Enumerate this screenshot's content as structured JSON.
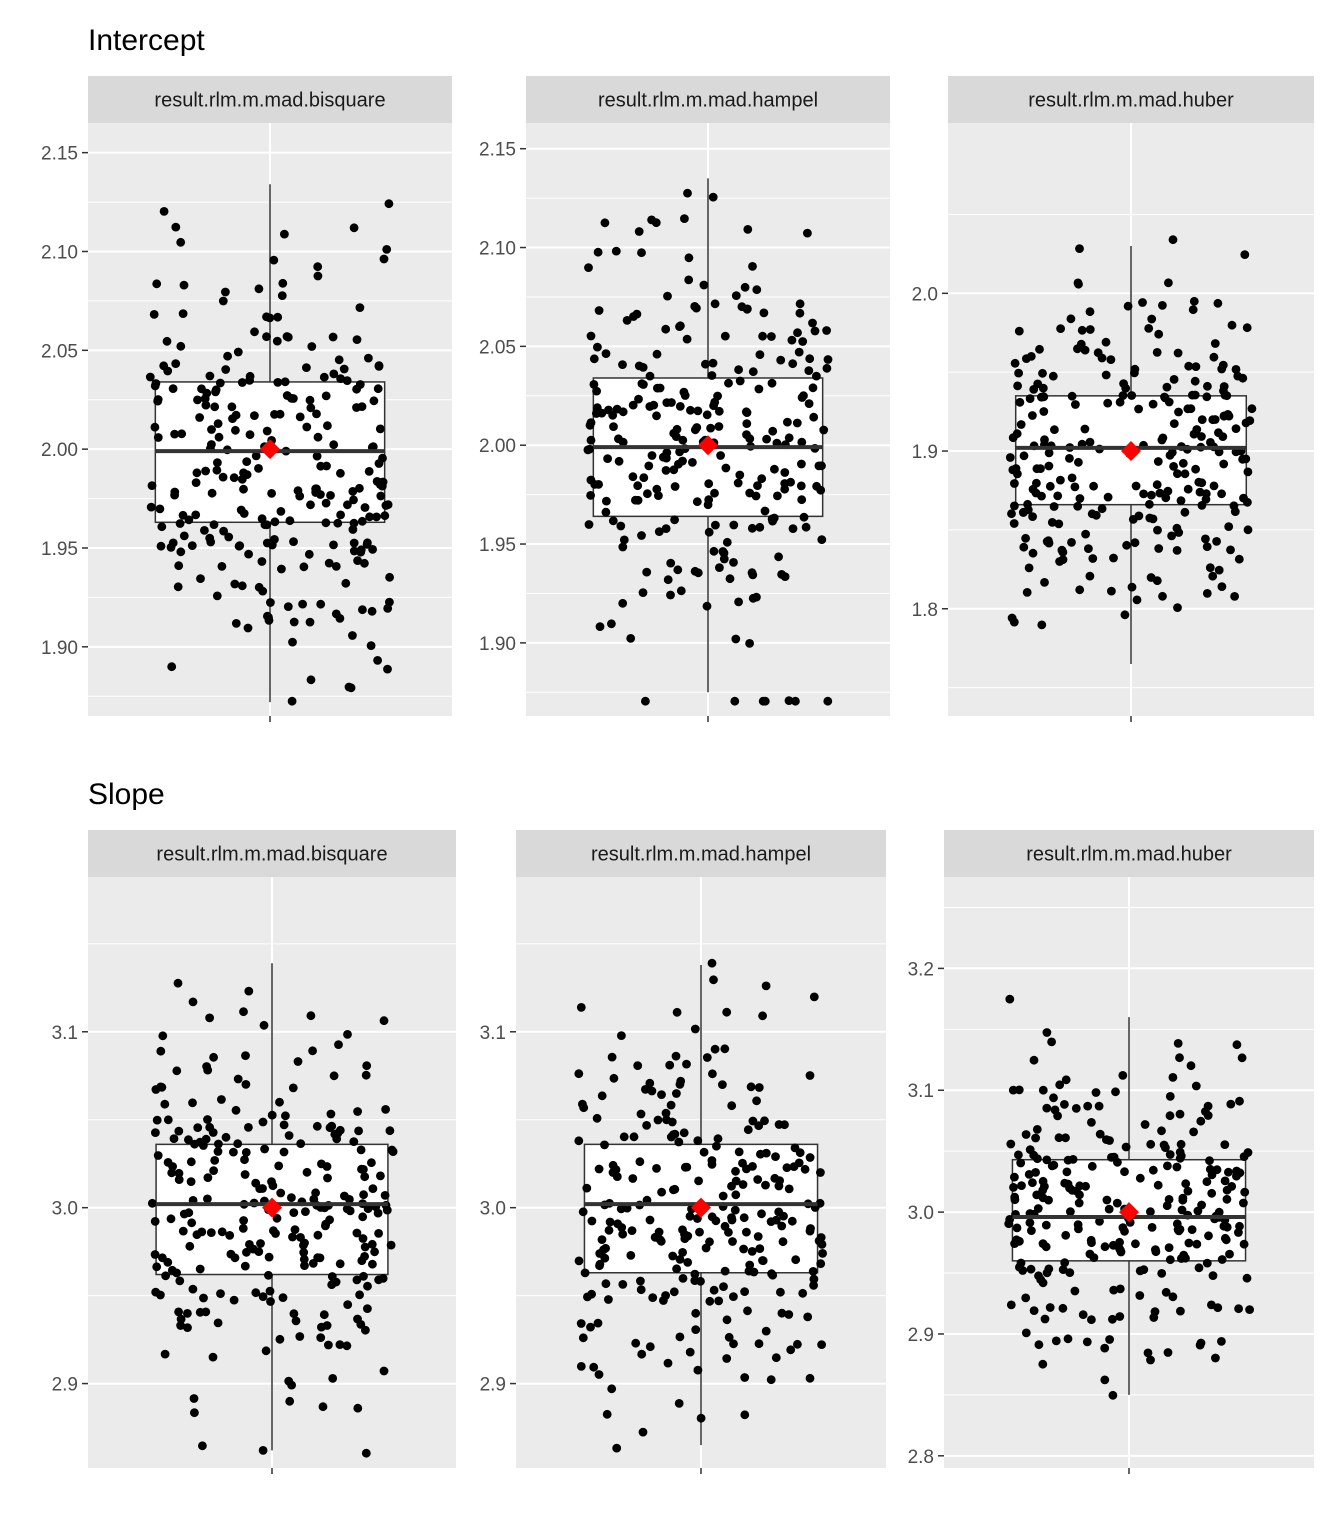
{
  "sections": [
    {
      "title": "Intercept"
    },
    {
      "title": "Slope"
    }
  ],
  "colors": {
    "panel_bg": "#EBEBEB",
    "strip_bg": "#D9D9D9",
    "grid": "#FFFFFF",
    "point": "#000000",
    "mean_marker": "#FF0000",
    "box_fill": "#FFFFFF",
    "box_line": "#333333"
  },
  "chart_data": [
    {
      "type": "box+jitter",
      "section": "Intercept",
      "panel": "result.rlm.m.mad.bisquare",
      "ylim": [
        1.865,
        2.165
      ],
      "yticks": [
        1.9,
        1.95,
        2.0,
        2.05,
        2.1,
        2.15
      ],
      "ytick_labels": [
        "1.90",
        "1.95",
        "2.00",
        "2.05",
        "2.10",
        "2.15"
      ],
      "box": {
        "q1": 1.963,
        "median": 1.999,
        "q3": 2.034,
        "whisker_low": 1.872,
        "whisker_high": 2.134
      },
      "mean": 2.0,
      "n_points": 260,
      "sd": 0.052,
      "seed": 11
    },
    {
      "type": "box+jitter",
      "section": "Intercept",
      "panel": "result.rlm.m.mad.hampel",
      "ylim": [
        1.863,
        2.163
      ],
      "yticks": [
        1.9,
        1.95,
        2.0,
        2.05,
        2.1,
        2.15
      ],
      "ytick_labels": [
        "1.90",
        "1.95",
        "2.00",
        "2.05",
        "2.10",
        "2.15"
      ],
      "box": {
        "q1": 1.964,
        "median": 1.999,
        "q3": 2.034,
        "whisker_low": 1.875,
        "whisker_high": 2.135
      },
      "mean": 2.0,
      "n_points": 260,
      "sd": 0.052,
      "seed": 23
    },
    {
      "type": "box+jitter",
      "section": "Intercept",
      "panel": "result.rlm.m.mad.huber",
      "ylim": [
        1.732,
        2.108
      ],
      "yticks": [
        1.8,
        1.9,
        2.0
      ],
      "ytick_labels": [
        "1.8",
        "1.9",
        "2.0"
      ],
      "box": {
        "q1": 1.866,
        "median": 1.902,
        "q3": 1.935,
        "whisker_low": 1.765,
        "whisker_high": 2.03
      },
      "mean": 1.9,
      "n_points": 260,
      "sd": 0.052,
      "seed": 37
    },
    {
      "type": "box+jitter",
      "section": "Slope",
      "panel": "result.rlm.m.mad.bisquare",
      "ylim": [
        2.852,
        3.188
      ],
      "yticks": [
        2.9,
        3.0,
        3.1
      ],
      "ytick_labels": [
        "2.9",
        "3.0",
        "3.1"
      ],
      "box": {
        "q1": 2.962,
        "median": 3.002,
        "q3": 3.036,
        "whisker_low": 2.862,
        "whisker_high": 3.139
      },
      "mean": 3.0,
      "n_points": 260,
      "sd": 0.055,
      "seed": 53
    },
    {
      "type": "box+jitter",
      "section": "Slope",
      "panel": "result.rlm.m.mad.hampel",
      "ylim": [
        2.852,
        3.188
      ],
      "yticks": [
        2.9,
        3.0,
        3.1
      ],
      "ytick_labels": [
        "2.9",
        "3.0",
        "3.1"
      ],
      "box": {
        "q1": 2.963,
        "median": 3.002,
        "q3": 3.036,
        "whisker_low": 2.865,
        "whisker_high": 3.138
      },
      "mean": 3.0,
      "n_points": 260,
      "sd": 0.055,
      "seed": 71
    },
    {
      "type": "box+jitter",
      "section": "Slope",
      "panel": "result.rlm.m.mad.huber",
      "ylim": [
        2.79,
        3.275
      ],
      "yticks": [
        2.8,
        2.9,
        3.0,
        3.1,
        3.2
      ],
      "ytick_labels": [
        "2.8",
        "2.9",
        "3.0",
        "3.1",
        "3.2"
      ],
      "box": {
        "q1": 2.96,
        "median": 2.996,
        "q3": 3.043,
        "whisker_low": 2.85,
        "whisker_high": 3.16
      },
      "mean": 3.0,
      "n_points": 260,
      "sd": 0.062,
      "seed": 97
    }
  ]
}
